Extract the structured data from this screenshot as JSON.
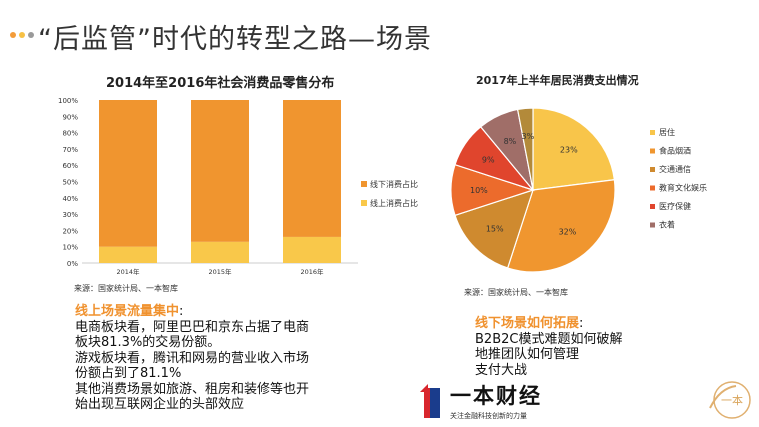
{
  "slide": {
    "title": "“后监管”时代的转型之路—场景",
    "accent_colors": [
      "#f39c3a",
      "#f7c145",
      "#9a9a9a"
    ]
  },
  "left_chart_title": "2014年至2016年社会消费品零售分布",
  "right_chart_title": "2017年上半年居民消费支出情况",
  "left_source": "来源：国家统计局、一本智库",
  "right_source": "来源：国家统计局、一本智库",
  "chart_data": [
    {
      "type": "bar",
      "stacked": true,
      "title": "2014年至2016年社会消费品零售分布",
      "categories": [
        "2014年",
        "2015年",
        "2016年"
      ],
      "series": [
        {
          "name": "线上消费占比",
          "values": [
            10,
            13,
            16
          ],
          "color": "#f9c84a"
        },
        {
          "name": "线下消费占比",
          "values": [
            90,
            87,
            84
          ],
          "color": "#f0952f"
        }
      ],
      "ylim": [
        0,
        100
      ],
      "yticks": [
        "0%",
        "10%",
        "20%",
        "30%",
        "40%",
        "50%",
        "60%",
        "70%",
        "80%",
        "90%",
        "100%"
      ],
      "legend_order": [
        "线下消费占比",
        "线上消费占比"
      ],
      "legend": "right",
      "grid": false
    },
    {
      "type": "pie",
      "title": "2017年上半年居民消费支出情况",
      "slices": [
        {
          "name": "居住",
          "value": 23,
          "label": "23%",
          "color": "#f8c54a"
        },
        {
          "name": "食品烟酒",
          "value": 32,
          "label": "32%",
          "color": "#f0962f"
        },
        {
          "name": "交通通信",
          "value": 15,
          "label": "15%",
          "color": "#cf8a2f"
        },
        {
          "name": "教育文化娱乐",
          "value": 10,
          "label": "10%",
          "color": "#ec6b2c"
        },
        {
          "name": "医疗保健",
          "value": 9,
          "label": "9%",
          "color": "#e0452d"
        },
        {
          "name": "衣着",
          "value": 8,
          "label": "8%",
          "color": "#a06e68"
        },
        {
          "name": "",
          "value": 3,
          "label": "3%",
          "color": "#b38a3a"
        }
      ],
      "legend": "right"
    }
  ],
  "online": {
    "heading": "线上场景流量集中",
    "lines": [
      "电商板块看，阿里巴巴和京东占据了电商",
      "板块81.3%的交易份额。",
      "游戏板块看，腾讯和网易的营业收入市场",
      "份额占到了81.1%",
      "其他消费场景如旅游、租房和装修等也开",
      "始出现互联网企业的头部效应"
    ]
  },
  "offline": {
    "heading": "线下场景如何拓展",
    "lines": [
      "B2B2C模式难题如何破解",
      "地推团队如何管理",
      "支付大战"
    ]
  },
  "logo": {
    "name": "一本财经",
    "slogan": "关注金融科技创新的力量",
    "stamp_text": "一本"
  }
}
